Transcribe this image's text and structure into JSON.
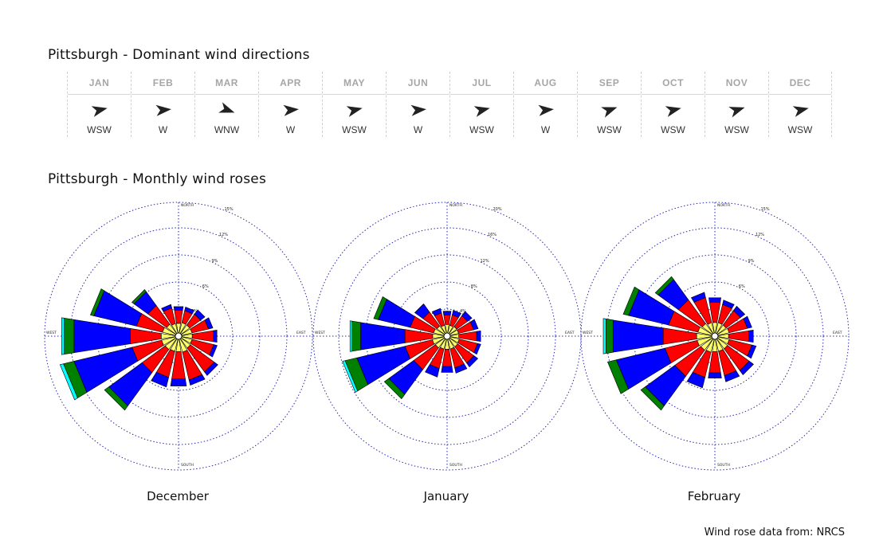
{
  "dominant": {
    "title": "Pittsburgh - Dominant wind directions",
    "months": [
      {
        "name": "JAN",
        "dir": "WSW",
        "arrow_deg": 77
      },
      {
        "name": "FEB",
        "dir": "W",
        "arrow_deg": 85
      },
      {
        "name": "MAR",
        "dir": "WNW",
        "arrow_deg": 110
      },
      {
        "name": "APR",
        "dir": "W",
        "arrow_deg": 85
      },
      {
        "name": "MAY",
        "dir": "WSW",
        "arrow_deg": 77
      },
      {
        "name": "JUN",
        "dir": "W",
        "arrow_deg": 85
      },
      {
        "name": "JUL",
        "dir": "WSW",
        "arrow_deg": 77
      },
      {
        "name": "AUG",
        "dir": "W",
        "arrow_deg": 85
      },
      {
        "name": "SEP",
        "dir": "WSW",
        "arrow_deg": 70
      },
      {
        "name": "OCT",
        "dir": "WSW",
        "arrow_deg": 77
      },
      {
        "name": "NOV",
        "dir": "WSW",
        "arrow_deg": 72
      },
      {
        "name": "DEC",
        "dir": "WSW",
        "arrow_deg": 77
      }
    ],
    "arrow_color": "#222222"
  },
  "roses_title": "Pittsburgh - Monthly wind roses",
  "source": "Wind rose data from: NRCS",
  "chart_data": [
    {
      "type": "wind-rose",
      "label": "December",
      "ring_labels": [
        "3%",
        "6%",
        "9%",
        "12%",
        "15%"
      ],
      "compass": {
        "N": "NORTH",
        "S": "SOUTH",
        "E": "EAST",
        "W": "WEST"
      },
      "speed_colors": [
        "#ffff66",
        "#ff0000",
        "#0000ff",
        "#008000",
        "#00ffff"
      ],
      "directions": [
        "N",
        "NNE",
        "NE",
        "ENE",
        "E",
        "ESE",
        "SE",
        "SSE",
        "S",
        "SSW",
        "SW",
        "WSW",
        "W",
        "WNW",
        "NW",
        "NNW"
      ],
      "segments": [
        [
          1.1,
          1.5,
          0.4,
          0,
          0
        ],
        [
          1.2,
          1.4,
          0.4,
          0,
          0
        ],
        [
          1.2,
          1.5,
          0.6,
          0,
          0
        ],
        [
          1.2,
          1.9,
          0.5,
          0,
          0
        ],
        [
          1.2,
          2.4,
          0.4,
          0,
          0
        ],
        [
          1.2,
          2.5,
          0.4,
          0,
          0
        ],
        [
          1.3,
          3.3,
          0.5,
          0,
          0
        ],
        [
          1.5,
          3.2,
          0.6,
          0,
          0
        ],
        [
          1.4,
          3.1,
          0.8,
          0,
          0
        ],
        [
          1.4,
          3.0,
          1.1,
          0,
          0
        ],
        [
          1.5,
          3.2,
          4.6,
          0.6,
          0
        ],
        [
          1.6,
          3.4,
          6.7,
          1.2,
          0.4
        ],
        [
          1.6,
          3.5,
          6.4,
          1.1,
          0.3
        ],
        [
          1.5,
          3.0,
          4.9,
          0.4,
          0
        ],
        [
          1.3,
          2.6,
          1.9,
          0.3,
          0
        ],
        [
          1.1,
          1.8,
          0.4,
          0,
          0
        ]
      ]
    },
    {
      "type": "wind-rose",
      "label": "January",
      "ring_labels": [
        "4%",
        "8%",
        "12%",
        "16%",
        "20%"
      ],
      "compass": {
        "N": "NORTH",
        "S": "SOUTH",
        "E": "EAST",
        "W": "WEST"
      },
      "speed_colors": [
        "#ffff66",
        "#ff0000",
        "#0000ff",
        "#008000",
        "#00ffff"
      ],
      "directions": [
        "N",
        "NNE",
        "NE",
        "ENE",
        "E",
        "ESE",
        "SE",
        "SSE",
        "S",
        "SSW",
        "SW",
        "WSW",
        "W",
        "WNW",
        "NW",
        "NNW"
      ],
      "segments": [
        [
          1.3,
          1.4,
          0.6,
          0,
          0
        ],
        [
          1.2,
          1.6,
          0.7,
          0,
          0
        ],
        [
          1.3,
          2.0,
          0.8,
          0,
          0
        ],
        [
          1.3,
          2.3,
          0.7,
          0,
          0
        ],
        [
          1.3,
          2.7,
          0.6,
          0,
          0
        ],
        [
          1.4,
          2.8,
          0.5,
          0,
          0
        ],
        [
          1.5,
          3.0,
          0.7,
          0,
          0
        ],
        [
          1.5,
          2.9,
          0.8,
          0,
          0
        ],
        [
          1.5,
          2.6,
          0.9,
          0,
          0
        ],
        [
          1.5,
          3.0,
          1.3,
          0,
          0
        ],
        [
          1.7,
          4.0,
          4.6,
          0.8,
          0
        ],
        [
          1.8,
          4.2,
          7.4,
          1.8,
          0.4
        ],
        [
          1.7,
          4.2,
          6.7,
          1.3,
          0.3
        ],
        [
          1.6,
          3.6,
          4.9,
          0.7,
          0
        ],
        [
          1.4,
          2.6,
          1.5,
          0,
          0
        ],
        [
          1.2,
          1.9,
          0.7,
          0,
          0
        ]
      ]
    },
    {
      "type": "wind-rose",
      "label": "February",
      "ring_labels": [
        "3%",
        "6%",
        "9%",
        "12%",
        "15%"
      ],
      "compass": {
        "N": "NORTH",
        "S": "SOUTH",
        "E": "EAST",
        "W": "WEST"
      },
      "speed_colors": [
        "#ffff66",
        "#ff0000",
        "#0000ff",
        "#008000",
        "#00ffff"
      ],
      "directions": [
        "N",
        "NNE",
        "NE",
        "ENE",
        "E",
        "ESE",
        "SE",
        "SSE",
        "S",
        "SSW",
        "SW",
        "WSW",
        "W",
        "WNW",
        "NW",
        "NNW"
      ],
      "segments": [
        [
          1.2,
          2.3,
          0.5,
          0,
          0
        ],
        [
          1.2,
          2.1,
          0.5,
          0,
          0
        ],
        [
          1.2,
          2.0,
          0.6,
          0,
          0
        ],
        [
          1.3,
          2.1,
          0.5,
          0,
          0
        ],
        [
          1.2,
          2.3,
          0.5,
          0,
          0
        ],
        [
          1.3,
          2.6,
          0.5,
          0,
          0
        ],
        [
          1.4,
          3.0,
          0.6,
          0,
          0
        ],
        [
          1.4,
          2.8,
          0.7,
          0,
          0
        ],
        [
          1.4,
          2.4,
          0.6,
          0,
          0
        ],
        [
          1.5,
          2.9,
          1.2,
          0,
          0
        ],
        [
          1.6,
          3.6,
          4.1,
          0.6,
          0
        ],
        [
          1.7,
          3.7,
          5.6,
          1.0,
          0
        ],
        [
          1.7,
          3.8,
          5.7,
          0.8,
          0.3
        ],
        [
          1.6,
          3.4,
          4.6,
          0.6,
          0
        ],
        [
          1.4,
          3.3,
          2.8,
          0.4,
          0
        ],
        [
          1.2,
          2.9,
          0.6,
          0,
          0
        ]
      ]
    }
  ]
}
